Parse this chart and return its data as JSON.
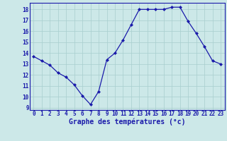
{
  "x": [
    0,
    1,
    2,
    3,
    4,
    5,
    6,
    7,
    8,
    9,
    10,
    11,
    12,
    13,
    14,
    15,
    16,
    17,
    18,
    19,
    20,
    21,
    22,
    23
  ],
  "y": [
    13.7,
    13.3,
    12.9,
    12.2,
    11.8,
    11.1,
    10.1,
    9.3,
    10.5,
    13.4,
    14.0,
    15.2,
    16.6,
    18.0,
    18.0,
    18.0,
    18.0,
    18.2,
    18.2,
    16.9,
    15.8,
    14.6,
    13.3,
    13.0
  ],
  "line_color": "#1a1aaa",
  "marker": "D",
  "marker_size": 2.0,
  "bg_color": "#cce8e8",
  "grid_color": "#a8cece",
  "xlabel": "Graphe des températures (°c)",
  "xlim": [
    -0.5,
    23.5
  ],
  "ylim": [
    8.8,
    18.6
  ],
  "yticks": [
    9,
    10,
    11,
    12,
    13,
    14,
    15,
    16,
    17,
    18
  ],
  "xticks": [
    0,
    1,
    2,
    3,
    4,
    5,
    6,
    7,
    8,
    9,
    10,
    11,
    12,
    13,
    14,
    15,
    16,
    17,
    18,
    19,
    20,
    21,
    22,
    23
  ],
  "axis_color": "#1a1aaa",
  "label_color": "#1a1aaa",
  "tick_fontsize": 5.5,
  "xlabel_fontsize": 7.0,
  "linewidth": 0.9
}
